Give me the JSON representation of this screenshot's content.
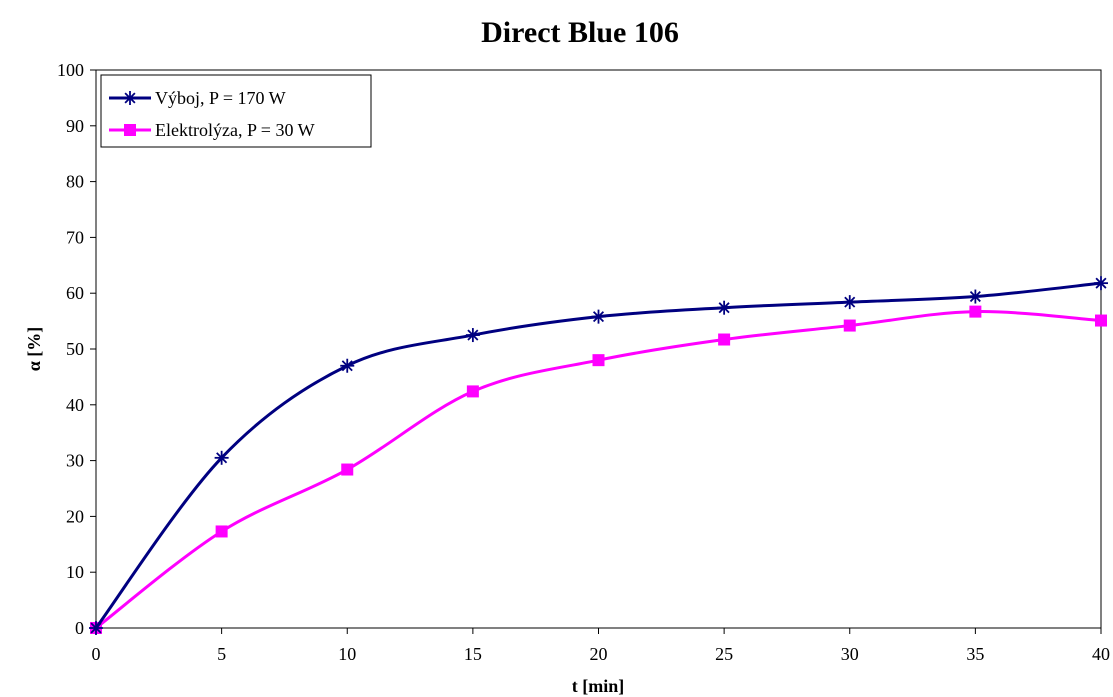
{
  "chart_data": {
    "type": "line",
    "title": "Direct Blue 106",
    "xlabel": "t [min]",
    "ylabel": "α [%]",
    "xlim": [
      0,
      40
    ],
    "ylim": [
      0,
      100
    ],
    "x_ticks": [
      0,
      5,
      10,
      15,
      20,
      25,
      30,
      35,
      40
    ],
    "y_ticks": [
      0,
      10,
      20,
      30,
      40,
      50,
      60,
      70,
      80,
      90,
      100
    ],
    "grid": false,
    "legend_position": "top-left",
    "x": [
      0,
      5,
      10,
      15,
      20,
      25,
      30,
      35,
      40
    ],
    "series": [
      {
        "name": "Výboj, P = 170 W",
        "color": "#000080",
        "marker": "asterisk",
        "values": [
          0,
          30.5,
          47,
          52.5,
          55.8,
          57.4,
          58.4,
          59.4,
          61.8
        ]
      },
      {
        "name": "Elektrolýza, P = 30 W",
        "color": "#FF00FF",
        "marker": "square",
        "values": [
          0,
          17.3,
          28.4,
          42.4,
          48,
          51.7,
          54.2,
          56.7,
          55.1
        ]
      }
    ]
  }
}
